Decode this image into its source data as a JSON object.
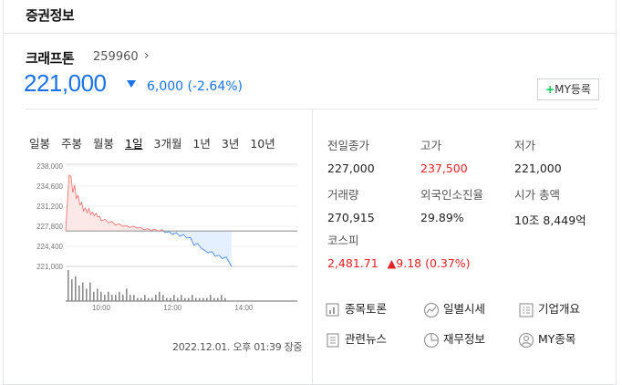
{
  "section": {
    "title": "증권정보"
  },
  "stock": {
    "name": "크래프톤",
    "code": "259960",
    "code_arrow": "›",
    "price": "221,000",
    "change": "6,000",
    "change_pct": "(-2.64%)",
    "direction": "down"
  },
  "my_button": {
    "plus": "+",
    "label": "MY등록"
  },
  "tabs": [
    "일봉",
    "주봉",
    "월봉",
    "1일",
    "3개월",
    "1년",
    "3년",
    "10년"
  ],
  "active_tab": "1일",
  "chart_data": {
    "type": "area",
    "yticks": [
      "238,000",
      "234,600",
      "231,200",
      "227,800",
      "224,400",
      "221,000"
    ],
    "ylim": [
      221000,
      238000
    ],
    "reference": 227000,
    "xticks": [
      "10:00",
      "12:00",
      "14:00"
    ],
    "x_range": [
      "09:00",
      "15:30"
    ],
    "series": [
      {
        "values": [
          [
            "09:00",
            227000
          ],
          [
            "09:03",
            232000
          ],
          [
            "09:06",
            236500
          ],
          [
            "09:09",
            236200
          ],
          [
            "09:12",
            233500
          ],
          [
            "09:15",
            234800
          ],
          [
            "09:18",
            232500
          ],
          [
            "09:21",
            233000
          ],
          [
            "09:24",
            231400
          ],
          [
            "09:27",
            231800
          ],
          [
            "09:30",
            230400
          ],
          [
            "09:33",
            230900
          ],
          [
            "09:36",
            230100
          ],
          [
            "09:39",
            230800
          ],
          [
            "09:42",
            229800
          ],
          [
            "09:45",
            230200
          ],
          [
            "09:48",
            229600
          ],
          [
            "09:51",
            230000
          ],
          [
            "09:54",
            229400
          ],
          [
            "09:57",
            229500
          ],
          [
            "10:00",
            228700
          ],
          [
            "10:06",
            229000
          ],
          [
            "10:12",
            228400
          ],
          [
            "10:18",
            228600
          ],
          [
            "10:24",
            228000
          ],
          [
            "10:30",
            228200
          ],
          [
            "10:36",
            227800
          ],
          [
            "10:42",
            227900
          ],
          [
            "10:48",
            227600
          ],
          [
            "10:54",
            227800
          ],
          [
            "11:00",
            227500
          ],
          [
            "11:06",
            227600
          ],
          [
            "11:12",
            227200
          ],
          [
            "11:18",
            227400
          ],
          [
            "11:24",
            227100
          ],
          [
            "11:30",
            227300
          ],
          [
            "11:36",
            227000
          ],
          [
            "11:42",
            227200
          ],
          [
            "11:48",
            226700
          ],
          [
            "11:54",
            226900
          ],
          [
            "12:00",
            226400
          ],
          [
            "12:06",
            226700
          ],
          [
            "12:12",
            226100
          ],
          [
            "12:18",
            226400
          ],
          [
            "12:24",
            225800
          ],
          [
            "12:30",
            225900
          ],
          [
            "12:36",
            224600
          ],
          [
            "12:42",
            224900
          ],
          [
            "12:48",
            224100
          ],
          [
            "12:54",
            223700
          ],
          [
            "13:00",
            223300
          ],
          [
            "13:06",
            223500
          ],
          [
            "13:12",
            222700
          ],
          [
            "13:18",
            222900
          ],
          [
            "13:24",
            222300
          ],
          [
            "13:30",
            222600
          ],
          [
            "13:36",
            221600
          ],
          [
            "13:39",
            221000
          ]
        ]
      }
    ],
    "volume": [
      10,
      7,
      8,
      5,
      6,
      4,
      6,
      3,
      4,
      3,
      2,
      3,
      2,
      2,
      3,
      2,
      4,
      2,
      2,
      1,
      1,
      2,
      1,
      1,
      2,
      3,
      2,
      1,
      1,
      2,
      1,
      2,
      1,
      1,
      2,
      1,
      1,
      1,
      1,
      2,
      1,
      1,
      2,
      1
    ]
  },
  "datetime": "2022.12.01. 오후 01:39 장중",
  "metrics": [
    {
      "label": "전일종가",
      "value": "227,000",
      "color": "normal"
    },
    {
      "label": "고가",
      "value": "237,500",
      "color": "up"
    },
    {
      "label": "저가",
      "value": "221,000",
      "color": "normal"
    },
    {
      "label": "거래량",
      "value": "270,915",
      "color": "normal"
    },
    {
      "label": "외국인소진율",
      "value": "29.89%",
      "color": "normal"
    },
    {
      "label": "시가 총액",
      "value": "10조 8,449억",
      "color": "normal"
    }
  ],
  "kospi": {
    "label": "코스피",
    "value": "2,481.71",
    "change_arrow": "▲",
    "change": "9.18 (0.37%)"
  },
  "links": [
    {
      "label": "종목토론",
      "icon": "discussion-icon"
    },
    {
      "label": "일별시세",
      "icon": "trend-icon"
    },
    {
      "label": "기업개요",
      "icon": "overview-icon"
    },
    {
      "label": "관련뉴스",
      "icon": "news-icon"
    },
    {
      "label": "재무정보",
      "icon": "pie-icon"
    },
    {
      "label": "MY종목",
      "icon": "user-icon"
    }
  ],
  "colors": {
    "up": "#e6202a",
    "down": "#1a73e8",
    "accent": "#03c75a"
  }
}
